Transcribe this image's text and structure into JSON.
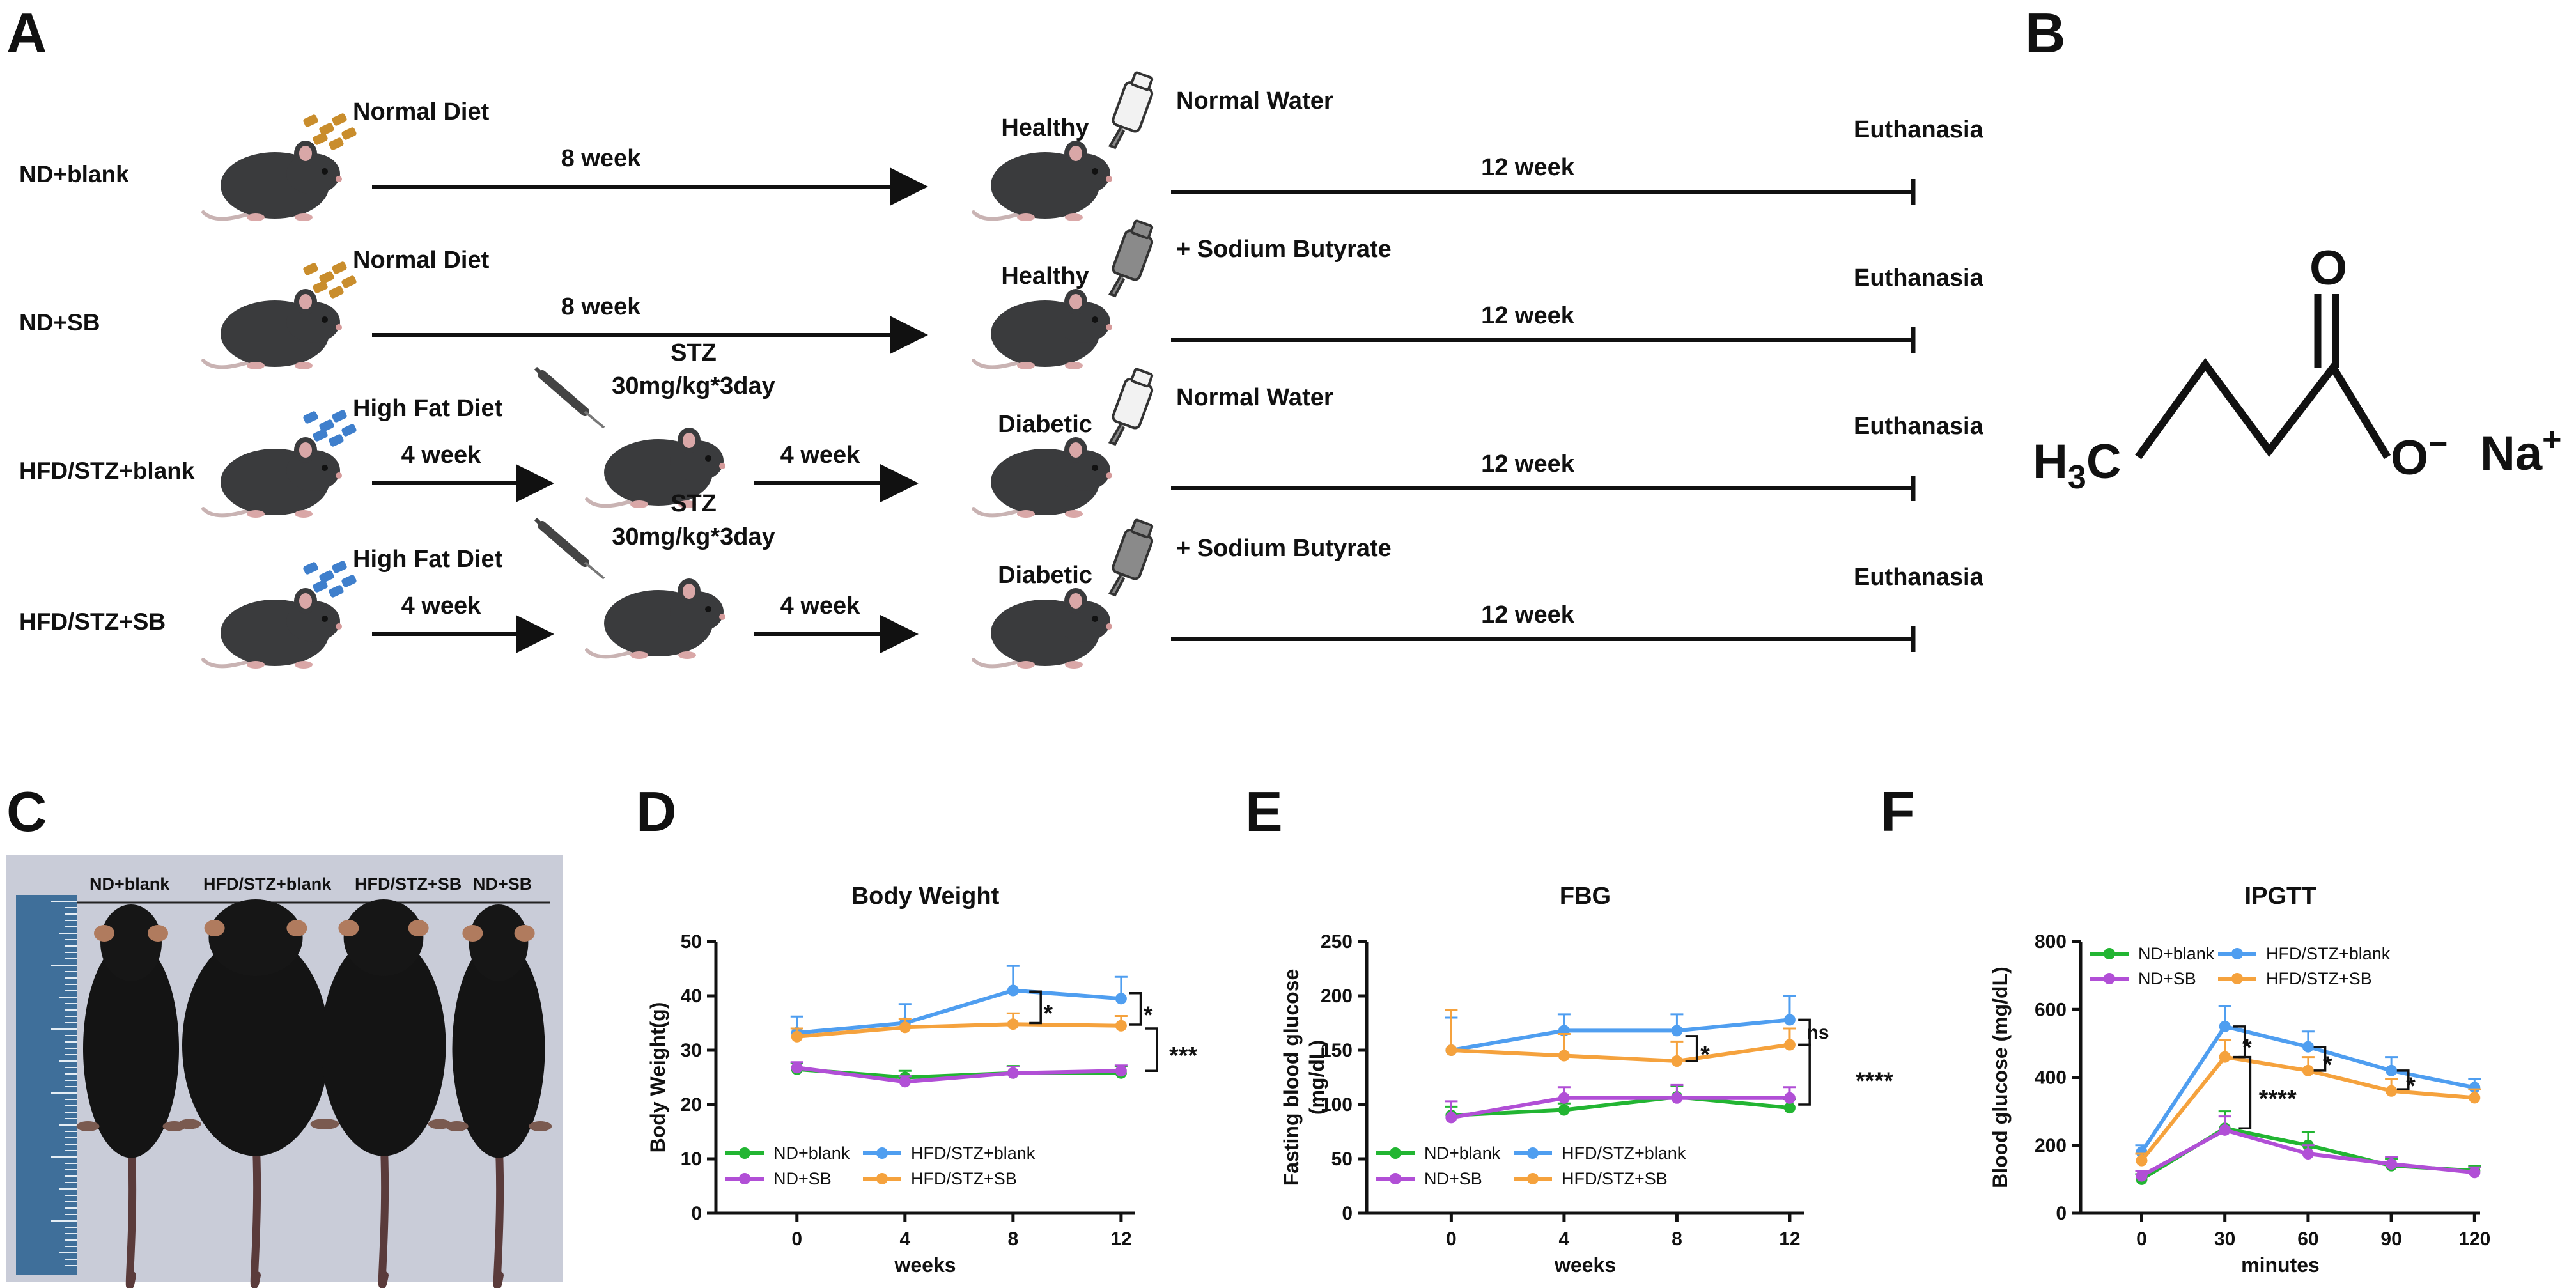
{
  "panel_letters": {
    "a": "A",
    "b": "B",
    "c": "C",
    "d": "D",
    "e": "E",
    "f": "F"
  },
  "colors": {
    "green": "#22b532",
    "purple": "#b14fd6",
    "blue": "#4f9ef0",
    "orange": "#f5a23d",
    "ink": "#111111",
    "mouse": "#3a3b3d",
    "diet_normal": "#c98d2c",
    "diet_hfd": "#3f7fcc"
  },
  "schema": {
    "rows": [
      {
        "label": "ND+blank",
        "label_color": "#22b532",
        "diet": "Normal Diet",
        "diet_kind": "normal",
        "first_arrow": "8 week",
        "status": "Healthy",
        "water": "Normal Water",
        "bottle": "light",
        "treatment_weeks": "12 week",
        "end": "Euthanasia"
      },
      {
        "label": "ND+SB",
        "label_color": "#7b2fa8",
        "diet": "Normal Diet",
        "diet_kind": "normal",
        "first_arrow": "8 week",
        "status": "Healthy",
        "water": "+ Sodium Butyrate",
        "bottle": "dark",
        "treatment_weeks": "12 week",
        "end": "Euthanasia"
      },
      {
        "label": "HFD/STZ+blank",
        "label_color": "#29a9e0",
        "diet": "High Fat Diet",
        "diet_kind": "hfd",
        "first_arrow": "4 week",
        "stz_line1": "STZ",
        "stz_line2": "30mg/kg*3day",
        "second_arrow": "4 week",
        "status": "Diabetic",
        "water": "Normal Water",
        "bottle": "light",
        "treatment_weeks": "12 week",
        "end": "Euthanasia"
      },
      {
        "label": "HFD/STZ+SB",
        "label_color": "#f5921e",
        "diet": "High Fat Diet",
        "diet_kind": "hfd",
        "first_arrow": "4 week",
        "stz_line1": "STZ",
        "stz_line2": "30mg/kg*3day",
        "second_arrow": "4 week",
        "status": "Diabetic",
        "water": "+ Sodium Butyrate",
        "bottle": "dark",
        "treatment_weeks": "12 week",
        "end": "Euthanasia"
      }
    ]
  },
  "molecule": {
    "o_top": "O",
    "h": "H",
    "sub3": "3",
    "c": "C",
    "o_minus": "O",
    "minus": "−",
    "na": "Na",
    "plus": "+"
  },
  "photo": {
    "labels": [
      "ND+blank",
      "HFD/STZ+blank",
      "HFD/STZ+SB",
      "ND+SB"
    ]
  },
  "legend_groups": [
    "ND+blank",
    "ND+SB",
    "HFD/STZ+blank",
    "HFD/STZ+SB"
  ],
  "chart_data": [
    {
      "id": "D",
      "type": "line",
      "title": "Body Weight",
      "xlabel": "weeks",
      "ylabel": "Body Weight(g)",
      "x": [
        0,
        4,
        8,
        12
      ],
      "xlim": [
        -3,
        12.5
      ],
      "xticks": [
        0,
        4,
        8,
        12
      ],
      "ylim": [
        0,
        50
      ],
      "yticks": [
        0,
        10,
        20,
        30,
        40,
        50
      ],
      "series": [
        {
          "name": "ND+blank",
          "color": "#22b532",
          "values": [
            26.5,
            25,
            25.8,
            25.8
          ],
          "err": [
            1.2,
            1.2,
            1.3,
            1.2
          ]
        },
        {
          "name": "ND+SB",
          "color": "#b14fd6",
          "values": [
            26.8,
            24.2,
            25.8,
            26.2
          ],
          "err": [
            1.0,
            1.0,
            1.2,
            1.0
          ]
        },
        {
          "name": "HFD/STZ+blank",
          "color": "#4f9ef0",
          "values": [
            33.2,
            35,
            41,
            39.5
          ],
          "err": [
            3,
            3.5,
            4.5,
            4
          ]
        },
        {
          "name": "HFD/STZ+SB",
          "color": "#f5a23d",
          "values": [
            32.5,
            34.2,
            34.8,
            34.5
          ],
          "err": [
            1.5,
            1.5,
            2,
            1.8
          ]
        }
      ],
      "annotations": [
        {
          "text": "*",
          "x_from": 8.6,
          "y_top": 40.8,
          "y_bottom": 35.0,
          "tx": 9.3
        },
        {
          "text": "*",
          "x_from": 12.3,
          "y_top": 40.5,
          "y_bottom": 34.7,
          "tx": 13.0
        },
        {
          "text": "***",
          "x_from": 12.9,
          "y_top": 34.0,
          "y_bottom": 26.2,
          "tx": 14.3
        }
      ],
      "legend": "bottom"
    },
    {
      "id": "E",
      "type": "line",
      "title": "FBG",
      "xlabel": "weeks",
      "ylabel": "Fasting blood glucose (mg/dL)",
      "ylabel_line1": "Fasting blood glucose",
      "ylabel_line2": "(mg/dL)",
      "x": [
        0,
        4,
        8,
        12
      ],
      "xlim": [
        -3,
        12.5
      ],
      "xticks": [
        0,
        4,
        8,
        12
      ],
      "ylim": [
        0,
        250
      ],
      "yticks": [
        0,
        50,
        100,
        150,
        200,
        250
      ],
      "series": [
        {
          "name": "ND+blank",
          "color": "#22b532",
          "values": [
            90,
            95,
            107,
            97
          ],
          "err": [
            8,
            6,
            10,
            8
          ]
        },
        {
          "name": "ND+SB",
          "color": "#b14fd6",
          "values": [
            88,
            106,
            106,
            106
          ],
          "err": [
            15,
            10,
            12,
            10
          ]
        },
        {
          "name": "HFD/STZ+blank",
          "color": "#4f9ef0",
          "values": [
            150,
            168,
            168,
            178
          ],
          "err": [
            30,
            15,
            15,
            22
          ]
        },
        {
          "name": "HFD/STZ+SB",
          "color": "#f5a23d",
          "values": [
            150,
            145,
            140,
            155
          ],
          "err": [
            37,
            20,
            18,
            15
          ]
        }
      ],
      "annotations": [
        {
          "text": "*",
          "x_from": 8.3,
          "y_top": 163,
          "y_bottom": 140,
          "tx": 9.0
        },
        {
          "text": "ns",
          "x_from": 12.3,
          "y_top": 178,
          "y_bottom": 155,
          "tx": 13.0
        },
        {
          "text": "****",
          "x_from": 12.3,
          "y_top": 155,
          "y_bottom": 100,
          "tx": 15.0
        }
      ],
      "legend": "bottom"
    },
    {
      "id": "F",
      "type": "line",
      "title": "IPGTT",
      "xlabel": "minutes",
      "ylabel": "Blood glucose (mg/dL)",
      "x": [
        0,
        30,
        60,
        90,
        120
      ],
      "xlim": [
        -22,
        122
      ],
      "xticks": [
        0,
        30,
        60,
        90,
        120
      ],
      "ylim": [
        0,
        800
      ],
      "yticks": [
        0,
        200,
        400,
        600,
        800
      ],
      "series": [
        {
          "name": "ND+blank",
          "color": "#22b532",
          "values": [
            100,
            250,
            200,
            140,
            125
          ],
          "err": [
            15,
            50,
            40,
            20,
            15
          ]
        },
        {
          "name": "ND+SB",
          "color": "#b14fd6",
          "values": [
            110,
            245,
            175,
            145,
            120
          ],
          "err": [
            15,
            40,
            25,
            20,
            15
          ]
        },
        {
          "name": "HFD/STZ+blank",
          "color": "#4f9ef0",
          "values": [
            180,
            550,
            490,
            420,
            370
          ],
          "err": [
            20,
            60,
            45,
            40,
            25
          ]
        },
        {
          "name": "HFD/STZ+SB",
          "color": "#f5a23d",
          "values": [
            155,
            460,
            420,
            360,
            340
          ],
          "err": [
            20,
            50,
            40,
            35,
            25
          ]
        }
      ],
      "annotations": [
        {
          "text": "*",
          "x_from": 33,
          "y_top": 550,
          "y_bottom": 460,
          "tx": 38
        },
        {
          "text": "*",
          "x_from": 62,
          "y_top": 490,
          "y_bottom": 420,
          "tx": 67
        },
        {
          "text": "*",
          "x_from": 92,
          "y_top": 420,
          "y_bottom": 365,
          "tx": 97
        },
        {
          "text": "****",
          "x_from": 35,
          "y_top": 460,
          "y_bottom": 250,
          "tx": 49
        }
      ],
      "legend": "top"
    }
  ]
}
